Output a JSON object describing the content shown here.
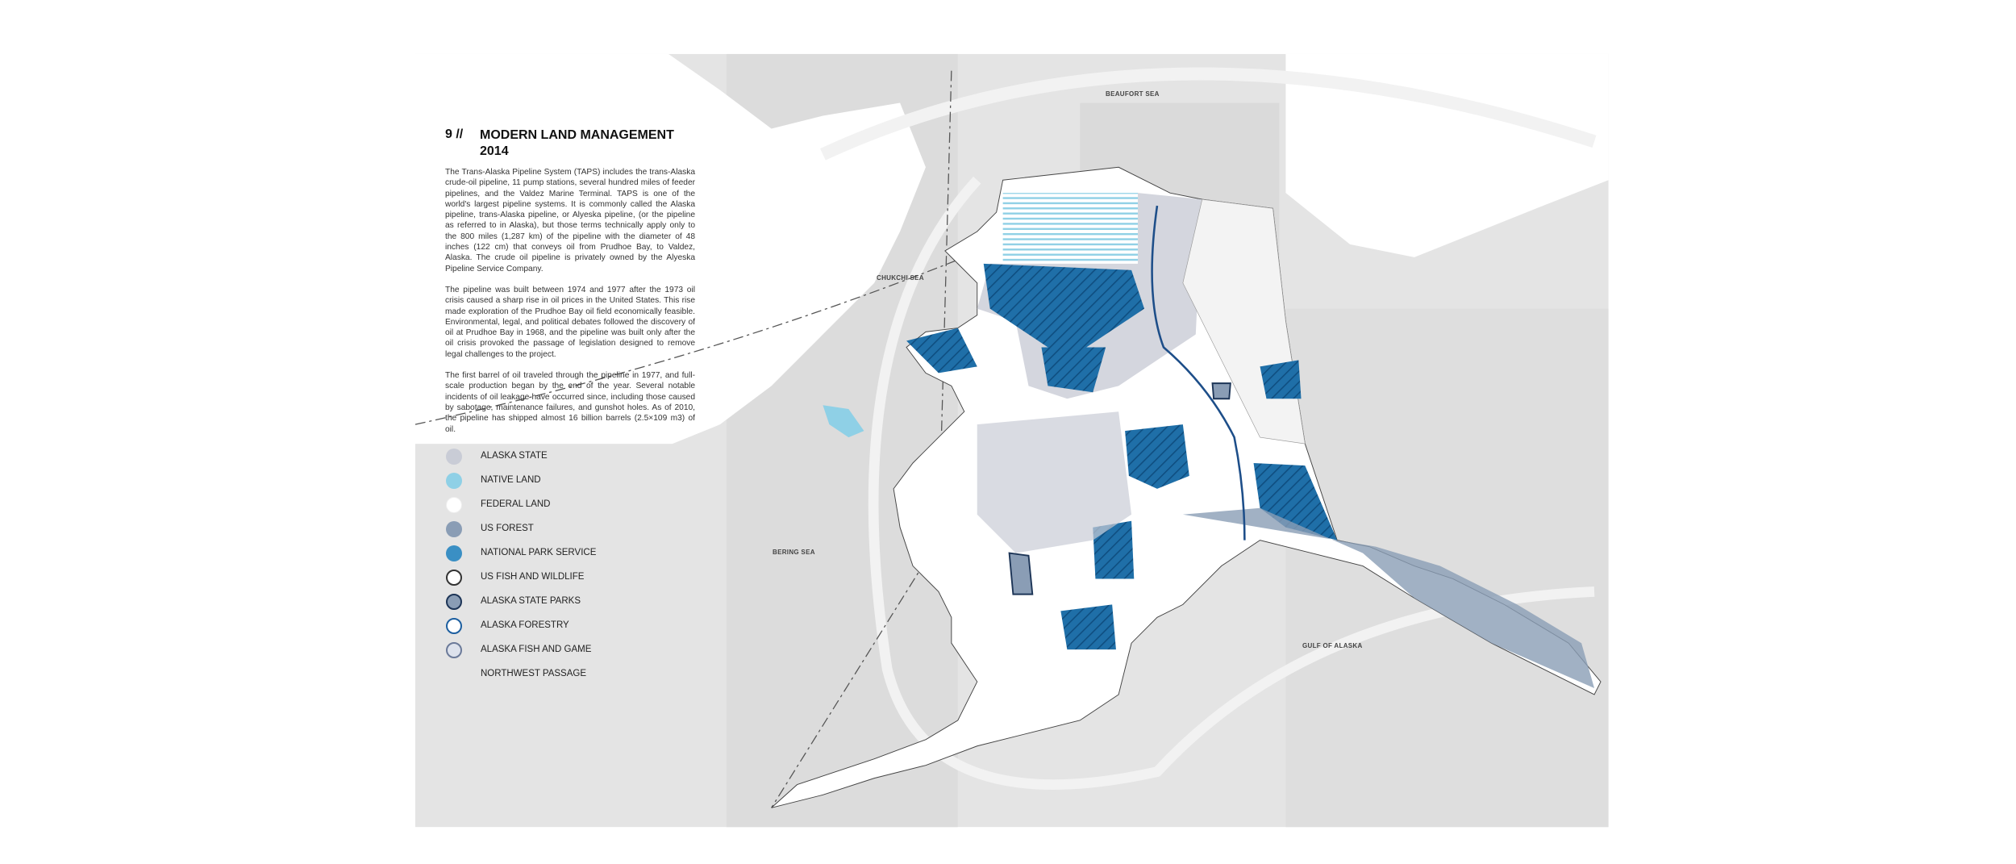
{
  "title_number": "9 //",
  "title": [
    "MODERN LAND MANAGEMENT",
    "2014"
  ],
  "paragraphs": [
    "The Trans-Alaska Pipeline System (TAPS) includes the trans-Alaska crude-oil pipeline, 11 pump stations, several hundred miles of feeder pipelines, and the Valdez Marine Terminal. TAPS is one of the world's largest pipeline systems. It is commonly called the Alaska pipeline, trans-Alaska pipeline, or Alyeska pipeline, (or the pipeline as referred to in Alaska), but those terms technically apply only to the 800 miles (1,287 km) of the pipeline with the diameter of 48 inches (122 cm) that conveys oil from Prudhoe Bay, to Valdez, Alaska. The crude oil pipeline is privately owned by the Alyeska Pipeline Service Company.",
    "The pipeline was built between 1974 and 1977 after the 1973 oil crisis caused a sharp rise in oil prices in the United States. This rise made exploration of the Prudhoe Bay oil field economically feasible. Environmental, legal, and political debates followed the discovery of oil at Prudhoe Bay in 1968, and the pipeline was built only after the oil crisis provoked the passage of legislation designed to remove legal challenges to the project.",
    "The first barrel of oil traveled through the pipeline in 1977, and full-scale production began by the end of the year. Several notable incidents of oil leakage have occurred since, including those caused by sabotage, maintenance failures, and gunshot holes. As of 2010, the pipeline has shipped almost 16 billion barrels (2.5×109 m3) of oil."
  ],
  "legend": [
    {
      "label": "ALASKA STATE",
      "color": "#c9ccd6",
      "border": "#c9ccd6"
    },
    {
      "label": "NATIVE LAND",
      "color": "#8fd0e6",
      "border": "#8fd0e6"
    },
    {
      "label": "FEDERAL LAND",
      "color": "#ffffff",
      "border": "#ffffff"
    },
    {
      "label": "US FOREST",
      "color": "#8a9db5",
      "border": "#8a9db5"
    },
    {
      "label": "NATIONAL PARK SERVICE",
      "color": "#3a8fc4",
      "border": "#3a8fc4"
    },
    {
      "label": "US FISH AND WILDLIFE",
      "color": "#ffffff",
      "border": "#333333"
    },
    {
      "label": "ALASKA STATE PARKS",
      "color": "#8a9db5",
      "border": "#1d3557"
    },
    {
      "label": "ALASKA FORESTRY",
      "color": "#ffffff",
      "border": "#1d5fa0"
    },
    {
      "label": "ALASKA FISH AND GAME",
      "color": "#dde2ec",
      "border": "#6b7a99"
    },
    {
      "label": "NORTHWEST PASSAGE",
      "color": null,
      "border": null
    }
  ],
  "seas": [
    "BEAUFORT SEA",
    "CHUKCHI SEA",
    "BERING SEA",
    "GULF OF ALASKA"
  ]
}
